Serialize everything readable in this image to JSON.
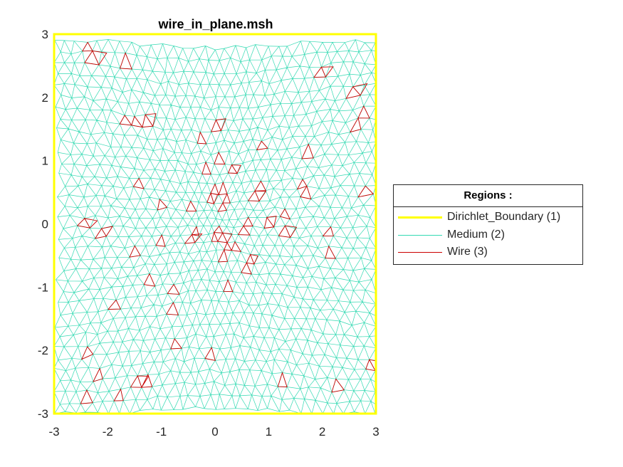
{
  "chart_data": {
    "type": "mesh",
    "title": "wire_in_plane.msh",
    "xlim": [
      -3,
      3
    ],
    "ylim": [
      -3,
      3
    ],
    "x_ticks": [
      "-3",
      "-2",
      "-1",
      "0",
      "1",
      "2",
      "3"
    ],
    "y_ticks": [
      "3",
      "2",
      "1",
      "0",
      "-1",
      "-2",
      "-3"
    ],
    "grid": false,
    "legend": {
      "title": "Regions :",
      "placement": "outside-right",
      "entries": [
        {
          "name": "Dirichlet_Boundary (1)",
          "color": "#ffff00"
        },
        {
          "name": "Medium (2)",
          "color": "#33d9b2"
        },
        {
          "name": "Wire (3)",
          "color": "#cc0000"
        }
      ]
    }
  }
}
